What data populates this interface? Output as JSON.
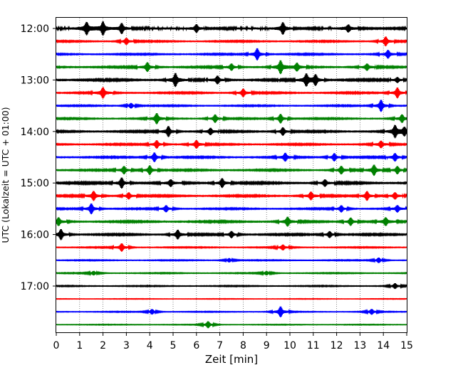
{
  "chart_data": {
    "type": "line",
    "subtype": "helicorder",
    "title": "",
    "xlabel": "Zeit  [min]",
    "ylabel": "UTC (Lokalzeit = UTC + 01:00)",
    "xlim": [
      0,
      15
    ],
    "x_ticks": [
      "0",
      "1",
      "2",
      "3",
      "4",
      "5",
      "6",
      "7",
      "8",
      "9",
      "10",
      "11",
      "12",
      "13",
      "14",
      "15"
    ],
    "y_ticks": [
      {
        "label": "12:00",
        "row": 0
      },
      {
        "label": "13:00",
        "row": 4
      },
      {
        "label": "14:00",
        "row": 8
      },
      {
        "label": "15:00",
        "row": 12
      },
      {
        "label": "16:00",
        "row": 16
      },
      {
        "label": "17:00",
        "row": 20
      }
    ],
    "grid": "vertical dotted",
    "row_minutes": 15,
    "color_cycle": [
      "#000000",
      "#ff0000",
      "#0000ff",
      "#008000"
    ],
    "rows": [
      {
        "start": "12:00",
        "amp": 0.95,
        "events": [
          [
            1.3,
            0.9
          ],
          [
            2.0,
            1.0
          ],
          [
            2.8,
            0.8
          ],
          [
            6.0,
            0.6
          ],
          [
            9.7,
            0.9
          ],
          [
            12.5,
            0.5
          ]
        ]
      },
      {
        "start": "12:15",
        "amp": 0.5,
        "events": [
          [
            3.0,
            0.5
          ],
          [
            14.1,
            0.7
          ]
        ]
      },
      {
        "start": "12:30",
        "amp": 0.5,
        "events": [
          [
            8.6,
            0.9
          ],
          [
            14.2,
            0.6
          ]
        ]
      },
      {
        "start": "12:45",
        "amp": 0.6,
        "events": [
          [
            3.9,
            0.7
          ],
          [
            7.5,
            0.5
          ],
          [
            9.6,
            1.0
          ],
          [
            10.3,
            0.6
          ],
          [
            13.3,
            0.5
          ]
        ]
      },
      {
        "start": "13:00",
        "amp": 0.7,
        "events": [
          [
            5.1,
            1.0
          ],
          [
            6.9,
            0.6
          ],
          [
            10.7,
            0.9
          ],
          [
            11.1,
            0.8
          ],
          [
            14.6,
            0.4
          ]
        ]
      },
      {
        "start": "13:15",
        "amp": 0.55,
        "events": [
          [
            2.0,
            0.8
          ],
          [
            8.0,
            0.6
          ],
          [
            14.6,
            0.8
          ]
        ]
      },
      {
        "start": "13:30",
        "amp": 0.45,
        "events": [
          [
            3.2,
            0.4
          ],
          [
            13.9,
            0.9
          ]
        ]
      },
      {
        "start": "13:45",
        "amp": 0.5,
        "events": [
          [
            4.3,
            0.8
          ],
          [
            6.8,
            0.6
          ],
          [
            9.6,
            0.7
          ],
          [
            14.8,
            0.6
          ]
        ]
      },
      {
        "start": "14:00",
        "amp": 0.6,
        "events": [
          [
            4.8,
            0.8
          ],
          [
            6.6,
            0.5
          ],
          [
            9.7,
            0.6
          ],
          [
            14.5,
            0.9
          ],
          [
            14.9,
            0.6
          ]
        ]
      },
      {
        "start": "14:15",
        "amp": 0.55,
        "events": [
          [
            4.3,
            0.6
          ],
          [
            6.0,
            0.6
          ],
          [
            13.9,
            0.5
          ]
        ]
      },
      {
        "start": "14:30",
        "amp": 0.55,
        "events": [
          [
            4.2,
            0.7
          ],
          [
            9.8,
            0.6
          ],
          [
            11.9,
            0.6
          ],
          [
            14.5,
            0.6
          ]
        ]
      },
      {
        "start": "14:45",
        "amp": 0.55,
        "events": [
          [
            2.9,
            0.6
          ],
          [
            4.0,
            0.7
          ],
          [
            12.2,
            0.6
          ],
          [
            13.6,
            0.8
          ],
          [
            14.6,
            0.6
          ]
        ]
      },
      {
        "start": "15:00",
        "amp": 0.7,
        "events": [
          [
            2.8,
            0.8
          ],
          [
            4.9,
            0.5
          ],
          [
            7.1,
            0.7
          ],
          [
            11.5,
            0.5
          ]
        ]
      },
      {
        "start": "15:15",
        "amp": 0.6,
        "events": [
          [
            1.6,
            0.7
          ],
          [
            3.1,
            0.5
          ],
          [
            10.9,
            0.6
          ],
          [
            13.3,
            0.7
          ],
          [
            14.5,
            0.5
          ]
        ]
      },
      {
        "start": "15:30",
        "amp": 0.5,
        "events": [
          [
            1.5,
            0.8
          ],
          [
            4.7,
            0.5
          ],
          [
            12.2,
            0.5
          ],
          [
            14.6,
            0.5
          ]
        ]
      },
      {
        "start": "15:45",
        "amp": 0.6,
        "events": [
          [
            0.1,
            0.6
          ],
          [
            9.9,
            0.7
          ],
          [
            12.6,
            0.6
          ],
          [
            14.1,
            0.6
          ]
        ]
      },
      {
        "start": "16:00",
        "amp": 0.6,
        "events": [
          [
            0.2,
            0.8
          ],
          [
            5.2,
            0.7
          ],
          [
            7.5,
            0.5
          ],
          [
            11.7,
            0.5
          ]
        ]
      },
      {
        "start": "16:15",
        "amp": 0.4,
        "events": [
          [
            2.8,
            0.6
          ],
          [
            9.7,
            0.4
          ]
        ]
      },
      {
        "start": "16:30",
        "amp": 0.35,
        "events": [
          [
            7.4,
            0.3
          ],
          [
            13.8,
            0.4
          ]
        ]
      },
      {
        "start": "16:45",
        "amp": 0.35,
        "events": [
          [
            1.6,
            0.3
          ],
          [
            9.0,
            0.3
          ]
        ]
      },
      {
        "start": "17:00",
        "amp": 0.35,
        "events": [
          [
            14.5,
            0.4
          ]
        ]
      },
      {
        "start": "17:15",
        "amp": 0.2,
        "events": []
      },
      {
        "start": "17:30",
        "amp": 0.3,
        "events": [
          [
            4.1,
            0.4
          ],
          [
            9.6,
            0.8
          ],
          [
            13.5,
            0.4
          ]
        ]
      },
      {
        "start": "17:45",
        "amp": 0.25,
        "events": [
          [
            6.5,
            0.5
          ]
        ]
      }
    ]
  }
}
